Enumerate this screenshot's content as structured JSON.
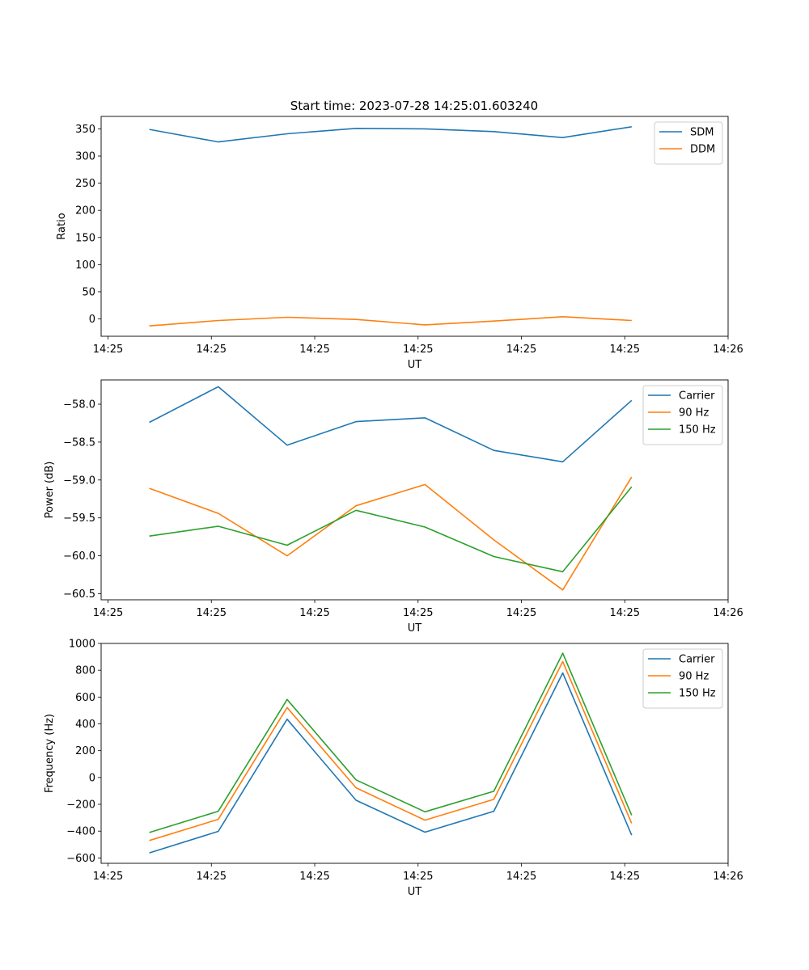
{
  "figure_title": "Start time: 2023-07-28 14:25:01.603240",
  "chart_data": [
    {
      "type": "line",
      "title": "Start time: 2023-07-28 14:25:01.603240",
      "xlabel": "UT",
      "ylabel": "Ratio",
      "xlim": [
        0,
        9.1
      ],
      "x": [
        0.7,
        1.7,
        2.7,
        3.7,
        4.7,
        5.7,
        6.7,
        7.7
      ],
      "xticks": [
        0.1,
        1.6,
        3.1,
        4.6,
        6.1,
        7.6,
        9.1
      ],
      "xticklabels": [
        "14:25",
        "14:25",
        "14:25",
        "14:25",
        "14:25",
        "14:25",
        "14:26"
      ],
      "ylim": [
        -32,
        373
      ],
      "yticks": [
        0,
        50,
        100,
        150,
        200,
        250,
        300,
        350
      ],
      "yticklabels": [
        "0",
        "50",
        "100",
        "150",
        "200",
        "250",
        "300",
        "350"
      ],
      "legend_position": "top-right",
      "series": [
        {
          "name": "SDM",
          "color": "#1f77b4",
          "values": [
            349,
            326,
            341,
            351,
            350,
            345,
            334,
            354
          ]
        },
        {
          "name": "DDM",
          "color": "#ff7f0e",
          "values": [
            -13,
            -3,
            3,
            -1,
            -11,
            -4,
            4,
            -3
          ]
        }
      ]
    },
    {
      "type": "line",
      "title": "",
      "xlabel": "UT",
      "ylabel": "Power (dB)",
      "xlim": [
        0,
        9.1
      ],
      "x": [
        0.7,
        1.7,
        2.7,
        3.7,
        4.7,
        5.7,
        6.7,
        7.7
      ],
      "xticks": [
        0.1,
        1.6,
        3.1,
        4.6,
        6.1,
        7.6,
        9.1
      ],
      "xticklabels": [
        "14:25",
        "14:25",
        "14:25",
        "14:25",
        "14:25",
        "14:25",
        "14:26"
      ],
      "ylim": [
        -60.58,
        -57.68
      ],
      "yticks": [
        -60.5,
        -60.0,
        -59.5,
        -59.0,
        -58.5,
        -58.0
      ],
      "yticklabels": [
        "−60.5",
        "−60.0",
        "−59.5",
        "−59.0",
        "−58.5",
        "−58.0"
      ],
      "legend_position": "top-right",
      "series": [
        {
          "name": "Carrier",
          "color": "#1f77b4",
          "values": [
            -58.24,
            -57.77,
            -58.54,
            -58.23,
            -58.18,
            -58.61,
            -58.76,
            -57.95
          ]
        },
        {
          "name": "90 Hz",
          "color": "#ff7f0e",
          "values": [
            -59.11,
            -59.44,
            -60.0,
            -59.34,
            -59.06,
            -59.79,
            -60.45,
            -58.96
          ]
        },
        {
          "name": "150 Hz",
          "color": "#2ca02c",
          "values": [
            -59.74,
            -59.61,
            -59.86,
            -59.4,
            -59.62,
            -60.01,
            -60.21,
            -59.09
          ]
        }
      ]
    },
    {
      "type": "line",
      "title": "",
      "xlabel": "UT",
      "ylabel": "Frequency (Hz)",
      "xlim": [
        0,
        9.1
      ],
      "x": [
        0.7,
        1.7,
        2.7,
        3.7,
        4.7,
        5.7,
        6.7,
        7.7
      ],
      "xticks": [
        0.1,
        1.6,
        3.1,
        4.6,
        6.1,
        7.6,
        9.1
      ],
      "xticklabels": [
        "14:25",
        "14:25",
        "14:25",
        "14:25",
        "14:25",
        "14:25",
        "14:26"
      ],
      "ylim": [
        -640,
        1000
      ],
      "yticks": [
        -600,
        -400,
        -200,
        0,
        200,
        400,
        600,
        800,
        1000
      ],
      "yticklabels": [
        "−600",
        "−400",
        "−200",
        "0",
        "200",
        "400",
        "600",
        "800",
        "1000"
      ],
      "legend_position": "top-right",
      "series": [
        {
          "name": "Carrier",
          "color": "#1f77b4",
          "values": [
            -562,
            -402,
            435,
            -170,
            -408,
            -252,
            780,
            -430
          ]
        },
        {
          "name": "90 Hz",
          "color": "#ff7f0e",
          "values": [
            -470,
            -312,
            522,
            -77,
            -318,
            -163,
            865,
            -342
          ]
        },
        {
          "name": "150 Hz",
          "color": "#2ca02c",
          "values": [
            -410,
            -252,
            582,
            -18,
            -256,
            -103,
            927,
            -282
          ]
        }
      ]
    }
  ]
}
